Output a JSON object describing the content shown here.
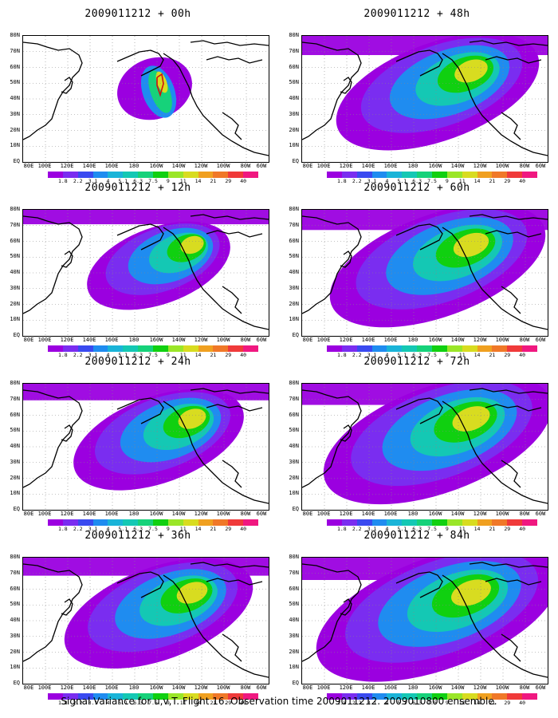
{
  "panels": [
    {
      "title": "2009011212 + 00h",
      "spread": 0.3
    },
    {
      "title": "2009011212 + 12h",
      "spread": 0.45
    },
    {
      "title": "2009011212 + 24h",
      "spread": 0.6
    },
    {
      "title": "2009011212 + 36h",
      "spread": 0.7
    },
    {
      "title": "2009011212 + 48h",
      "spread": 0.78
    },
    {
      "title": "2009011212 + 60h",
      "spread": 0.85
    },
    {
      "title": "2009011212 + 72h",
      "spread": 0.92
    },
    {
      "title": "2009011212 + 84h",
      "spread": 1.0
    }
  ],
  "lat_labels": [
    "80N",
    "70N",
    "60N",
    "50N",
    "40N",
    "30N",
    "20N",
    "10N",
    "EQ"
  ],
  "lon_labels": [
    "80E",
    "100E",
    "120E",
    "140E",
    "160E",
    "180",
    "160W",
    "140W",
    "120W",
    "100W",
    "80W",
    "60W"
  ],
  "colorbar": {
    "labels": [
      "1.8",
      "2.2",
      "3.1",
      "4",
      "5.1",
      "6.3",
      "7.5",
      "9",
      "11",
      "14",
      "21",
      "29",
      "40"
    ],
    "colors": [
      "#9b00e0",
      "#7a2df0",
      "#3a4af0",
      "#1f8cf0",
      "#1ab4d8",
      "#14c8b4",
      "#16d27a",
      "#10d010",
      "#9ae628",
      "#d8dc20",
      "#f0a020",
      "#f07828",
      "#f03a3a",
      "#f01880"
    ]
  },
  "caption": "Signal Variance for u,v,T. Flight 16. Observation time 2009011212. 2009010800 ensemble."
}
